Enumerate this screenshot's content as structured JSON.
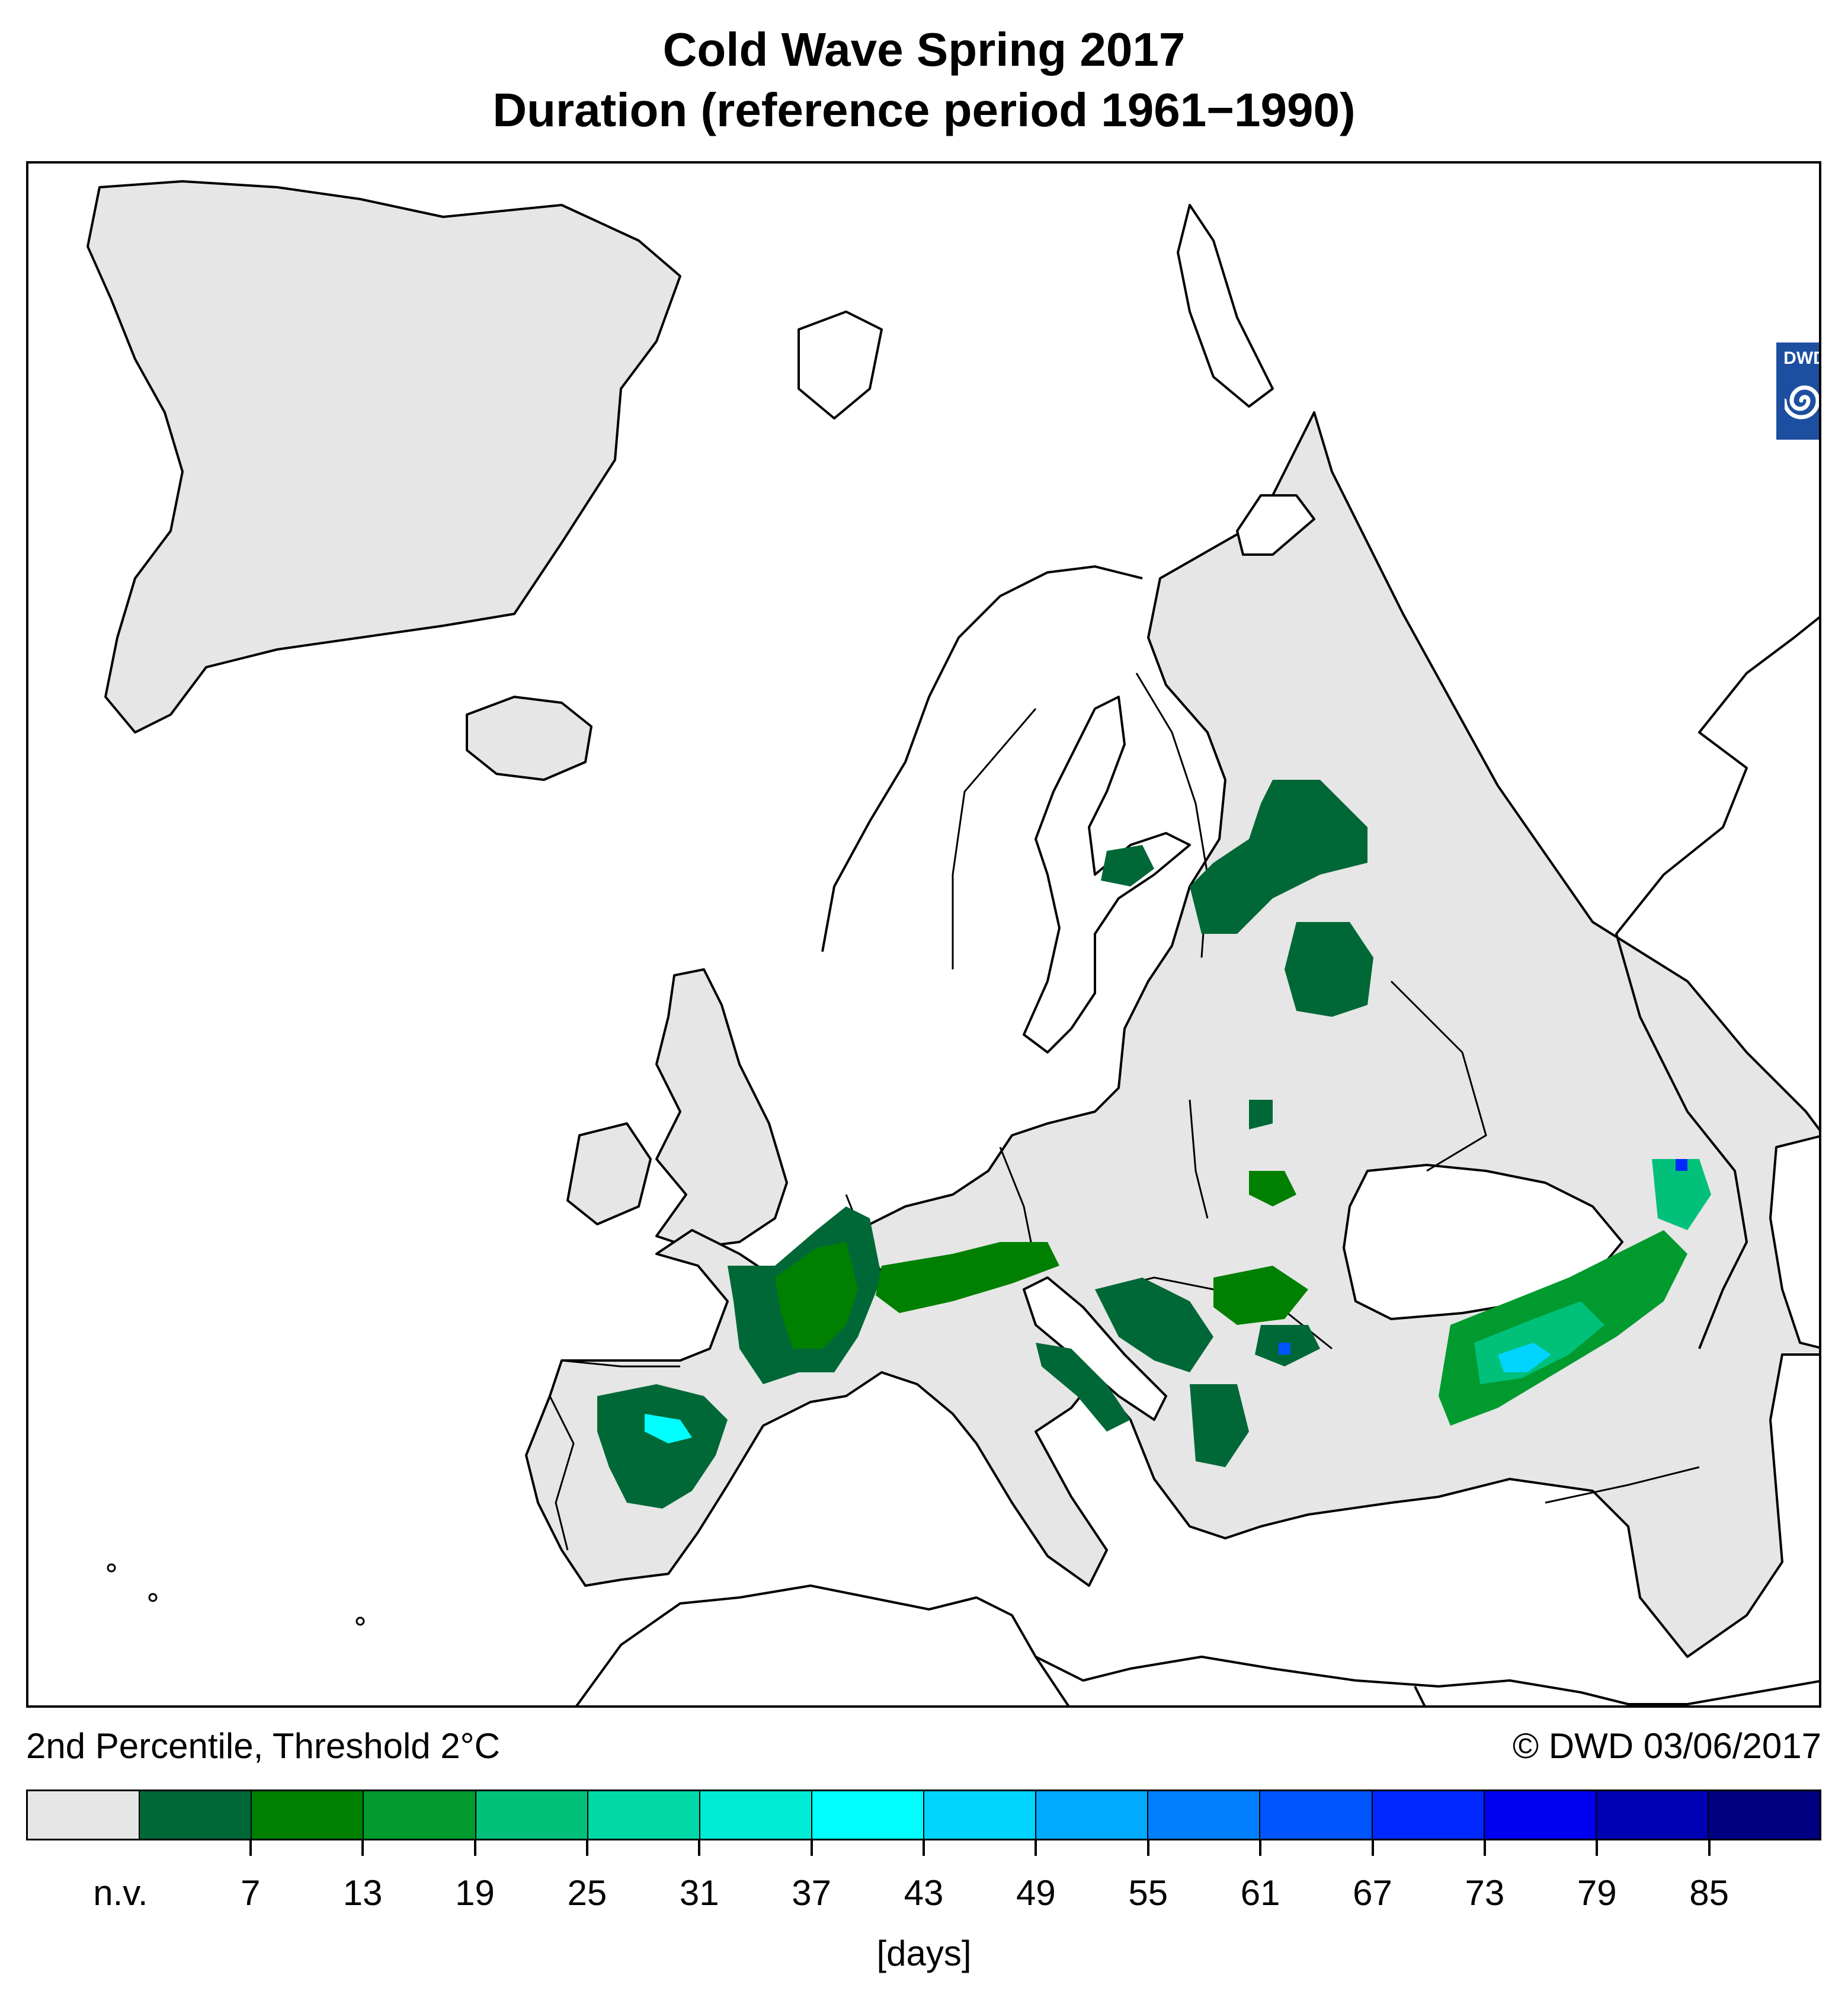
{
  "title_line1": "Cold Wave Spring 2017",
  "title_line2": "Duration (reference period 1961−1990)",
  "caption_left": "2nd Percentile, Threshold 2°C",
  "caption_right": "© DWD 03/06/2017",
  "logo_text": "DWD",
  "logo_icon": "swirl-icon",
  "legend": {
    "unit": "[days]",
    "tick_labels": [
      "n.v.",
      "7",
      "13",
      "19",
      "25",
      "31",
      "37",
      "43",
      "49",
      "55",
      "61",
      "67",
      "73",
      "79",
      "85"
    ],
    "colors": [
      "#e6e6e6",
      "#006837",
      "#008000",
      "#009a2e",
      "#00c07a",
      "#00d8a8",
      "#00ecd4",
      "#00ffff",
      "#00d4ff",
      "#00aaff",
      "#0080ff",
      "#0055ff",
      "#0028ff",
      "#0000f0",
      "#0000b4",
      "#000080"
    ]
  },
  "map_colors": {
    "land_analysed": "#e6e6e6",
    "water": "#ffffff",
    "coastline": "#000000"
  }
}
